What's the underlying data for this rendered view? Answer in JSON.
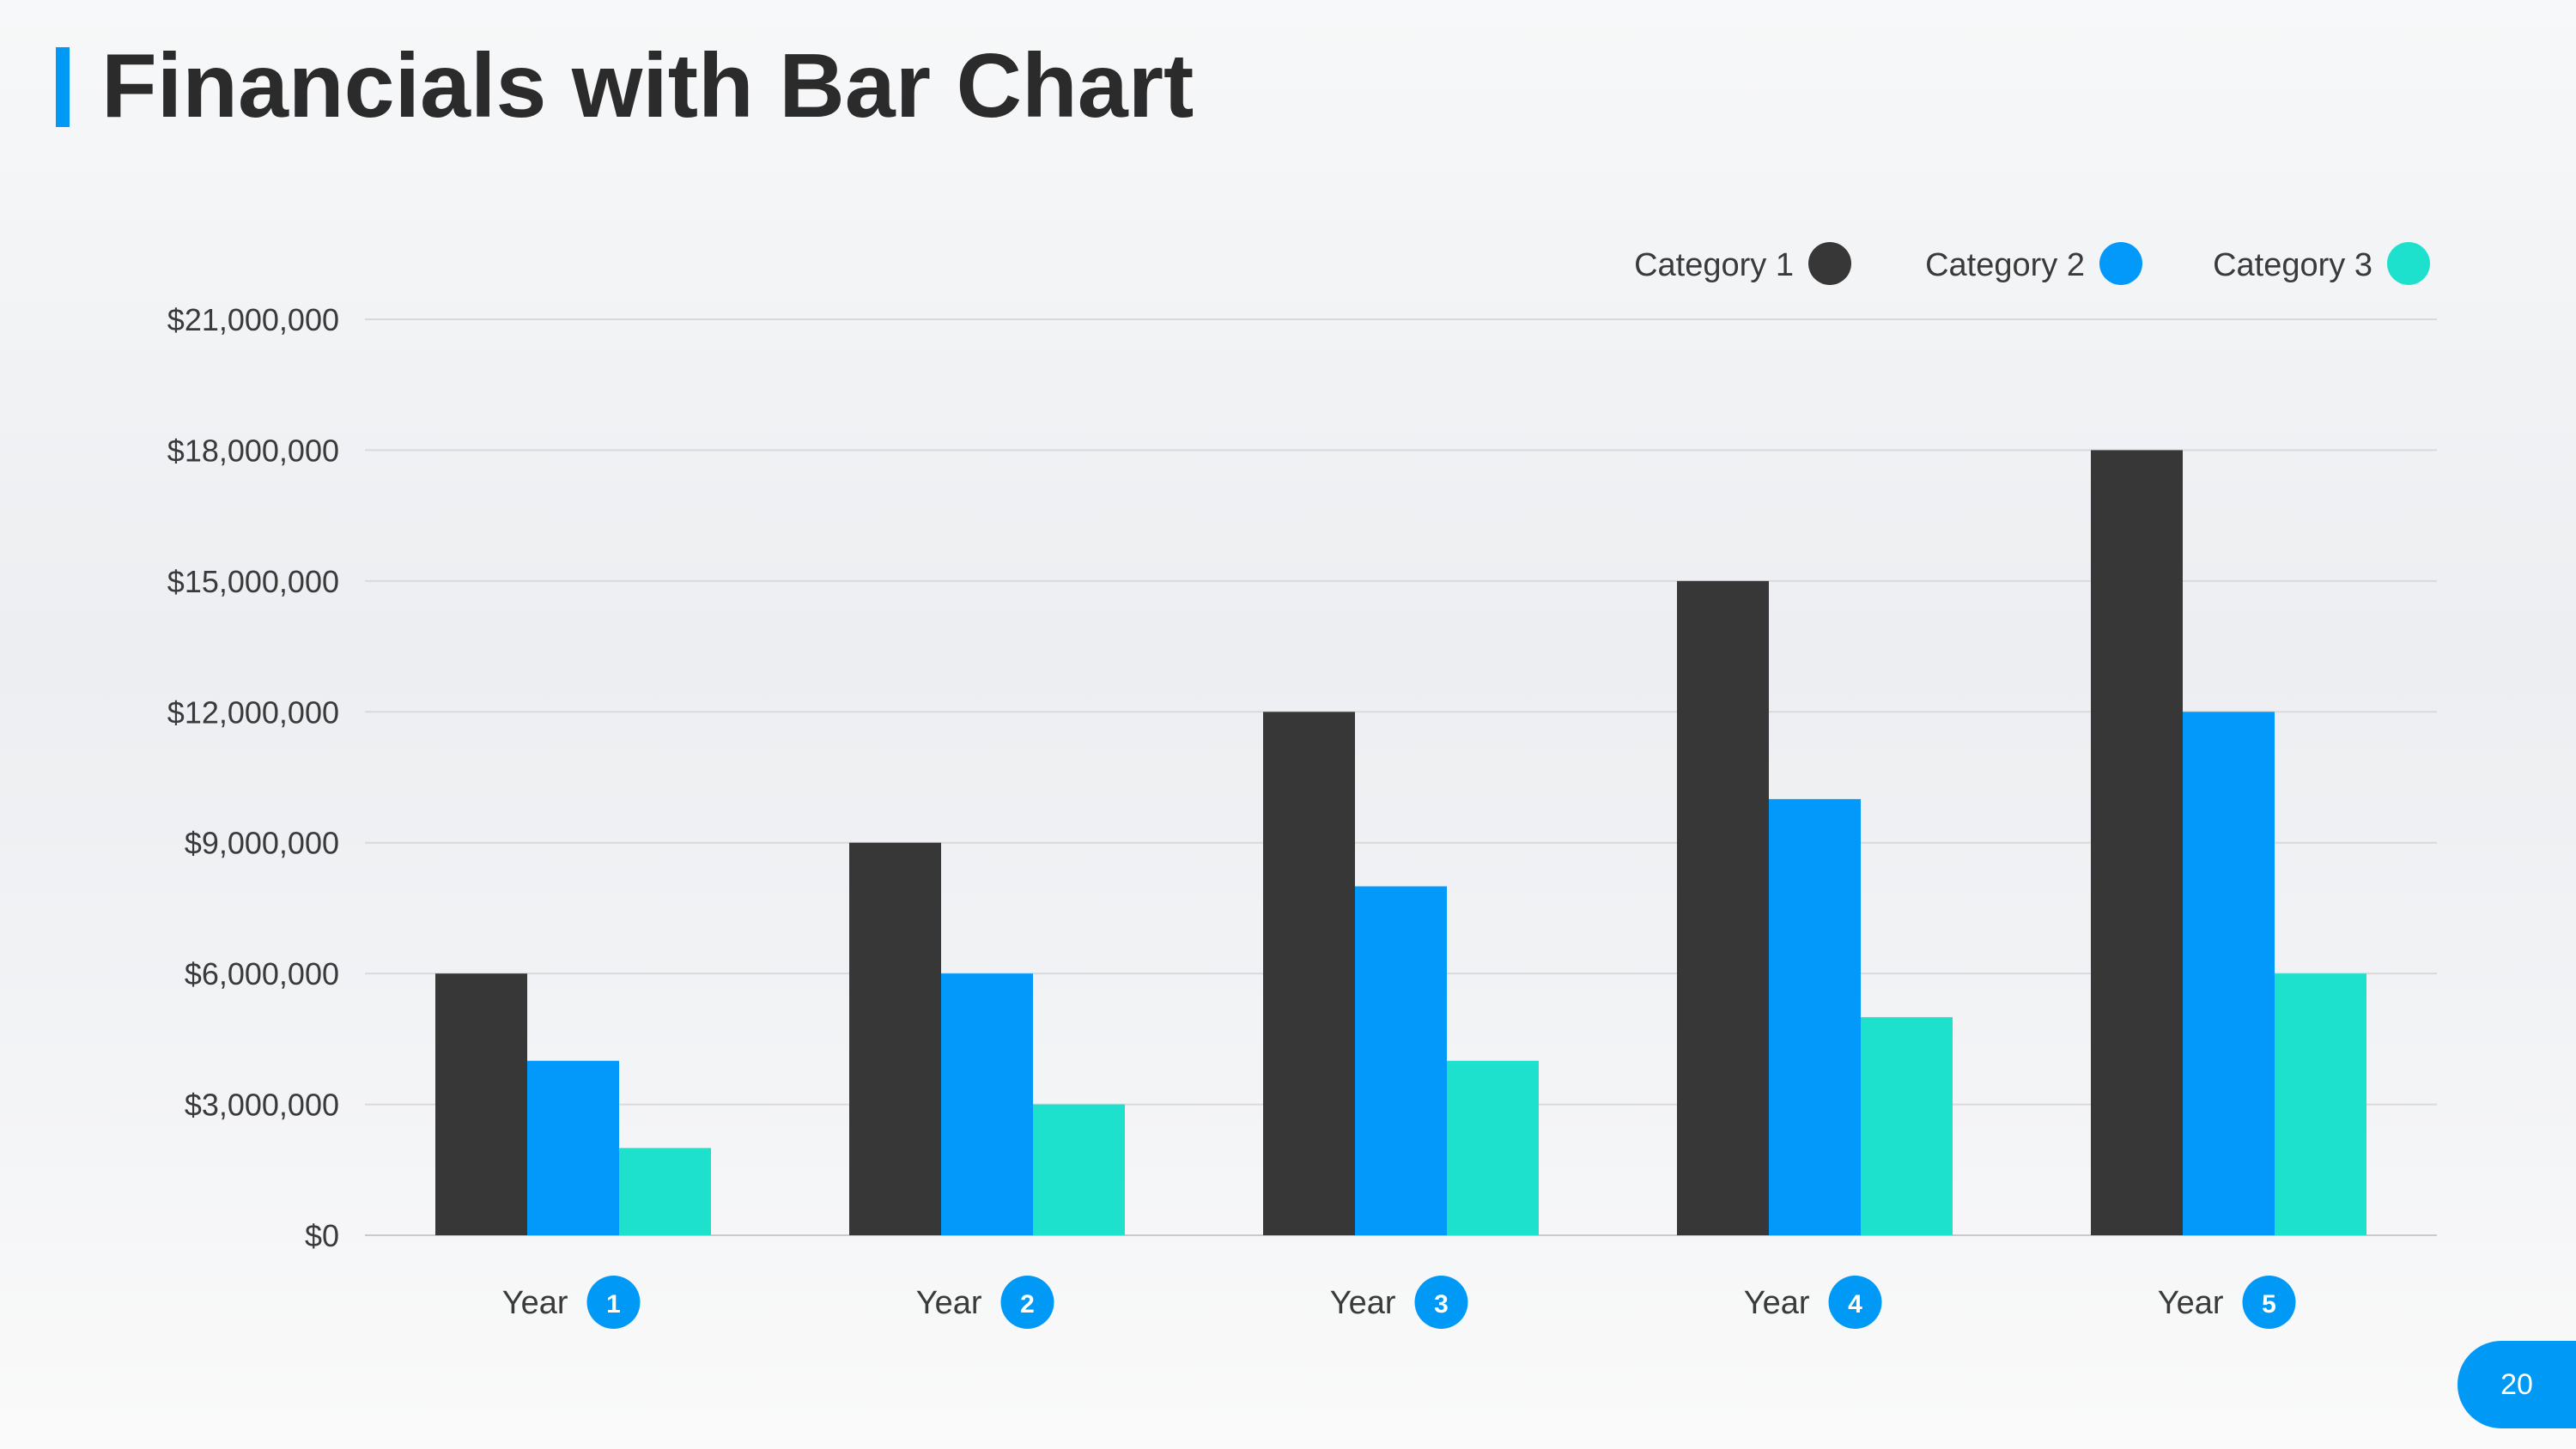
{
  "slide": {
    "title": "Financials with Bar Chart",
    "page_number": "20",
    "accent_color": "#0099f5"
  },
  "chart_data": {
    "type": "bar",
    "title": "",
    "xlabel": "",
    "ylabel": "",
    "categories": [
      "Year",
      "Year",
      "Year",
      "Year",
      "Year"
    ],
    "category_badges": [
      "1",
      "2",
      "3",
      "4",
      "5"
    ],
    "series": [
      {
        "name": "Category 1",
        "color": "#383738",
        "values": [
          6000000,
          9000000,
          12000000,
          15000000,
          18000000
        ]
      },
      {
        "name": "Category 2",
        "color": "#0399fb",
        "values": [
          4000000,
          6000000,
          8000000,
          10000000,
          12000000
        ]
      },
      {
        "name": "Category 3",
        "color": "#1de1cc",
        "values": [
          2000000,
          3000000,
          4000000,
          5000000,
          6000000
        ]
      }
    ],
    "ylim": [
      0,
      21000000
    ],
    "yticks": [
      0,
      3000000,
      6000000,
      9000000,
      12000000,
      15000000,
      18000000,
      21000000
    ],
    "ytick_labels": [
      "$0",
      "$3,000,000",
      "$6,000,000",
      "$9,000,000",
      "$12,000,000",
      "$15,000,000",
      "$18,000,000",
      "$21,000,000"
    ],
    "grid": true,
    "legend_position": "top-right"
  }
}
